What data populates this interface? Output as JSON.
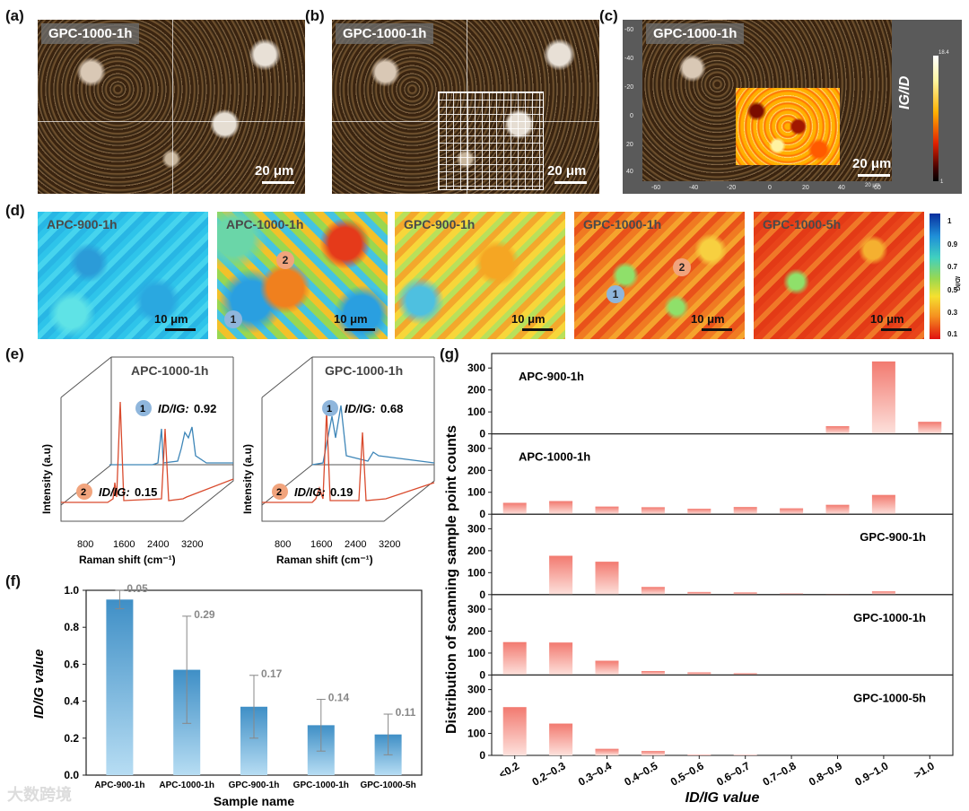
{
  "panel_labels": {
    "a": "(a)",
    "b": "(b)",
    "c": "(c)",
    "d": "(d)",
    "e": "(e)",
    "f": "(f)",
    "g": "(g)"
  },
  "micrographs": [
    {
      "tag": "GPC-1000-1h",
      "scale": "20 μm"
    },
    {
      "tag": "GPC-1000-1h",
      "scale": "20 μm"
    },
    {
      "tag": "GPC-1000-1h",
      "scale": "20 μm"
    }
  ],
  "panel_c": {
    "y_ticks": [
      "-60",
      "-40",
      "-20",
      "0",
      "20",
      "40"
    ],
    "x_ticks": [
      "-60",
      "-40",
      "-20",
      "0",
      "20",
      "40",
      "60"
    ],
    "colorbar_max": "18.4",
    "colorbar_min": "1",
    "colorbar_label": "IG/ID",
    "x_unit": "20 µm"
  },
  "maps": [
    {
      "tag": "APC-900-1h",
      "scale": "10 μm"
    },
    {
      "tag": "APC-1000-1h",
      "scale": "10 μm"
    },
    {
      "tag": "GPC-900-1h",
      "scale": "10 μm"
    },
    {
      "tag": "GPC-1000-1h",
      "scale": "10 μm"
    },
    {
      "tag": "GPC-1000-5h",
      "scale": "10 μm"
    }
  ],
  "map_points": {
    "p1": "1",
    "p2": "2"
  },
  "map_colorbar": {
    "ticks": [
      "1",
      "0.9",
      "0.7",
      "0.5",
      "0.3",
      "0.1"
    ],
    "label": "ID/IG"
  },
  "raman": [
    {
      "title": "APC-1000-1h",
      "p1_label": "ID/IG:",
      "p1_value": "0.92",
      "p2_label": "ID/IG:",
      "p2_value": "0.15"
    },
    {
      "title": "GPC-1000-1h",
      "p1_label": "ID/IG:",
      "p1_value": "0.68",
      "p2_label": "ID/IG:",
      "p2_value": "0.19"
    }
  ],
  "raman_axes": {
    "ylabel": "Intensity (a.u)",
    "xlabel": "Raman shift (cm⁻¹)",
    "xticks": [
      "800",
      "1600",
      "2400",
      "3200"
    ]
  },
  "watermark": "大数跨境",
  "chart_data": [
    {
      "type": "bar",
      "panel": "f",
      "categories": [
        "APC-900-1h",
        "APC-1000-1h",
        "GPC-900-1h",
        "GPC-1000-1h",
        "GPC-1000-5h"
      ],
      "values": [
        0.95,
        0.57,
        0.37,
        0.27,
        0.22
      ],
      "errors": [
        0.05,
        0.29,
        0.17,
        0.14,
        0.11
      ],
      "error_labels": [
        "0.05",
        "0.29",
        "0.17",
        "0.14",
        "0.11"
      ],
      "xlabel": "Sample name",
      "ylabel": "ID/IG value",
      "ylim": [
        0,
        1.0
      ],
      "yticks": [
        "0.0",
        "0.2",
        "0.4",
        "0.6",
        "0.8",
        "1.0"
      ],
      "color": "#4f9ccc"
    },
    {
      "type": "bar",
      "panel": "g",
      "categories": [
        "<0.2",
        "0.2~0.3",
        "0.3~0.4",
        "0.4~0.5",
        "0.5~0.6",
        "0.6~0.7",
        "0.7~0.8",
        "0.8~0.9",
        "0.9~1.0",
        ">1.0"
      ],
      "series": [
        {
          "name": "APC-900-1h",
          "values": [
            0,
            0,
            0,
            0,
            0,
            0,
            0,
            35,
            330,
            55
          ]
        },
        {
          "name": "APC-1000-1h",
          "values": [
            52,
            60,
            35,
            32,
            25,
            33,
            27,
            43,
            88,
            0
          ]
        },
        {
          "name": "GPC-900-1h",
          "values": [
            0,
            177,
            150,
            35,
            12,
            10,
            5,
            3,
            15,
            0
          ]
        },
        {
          "name": "GPC-1000-1h",
          "values": [
            150,
            148,
            65,
            18,
            12,
            8,
            0,
            0,
            0,
            0
          ]
        },
        {
          "name": "GPC-1000-5h",
          "values": [
            220,
            145,
            30,
            20,
            3,
            2,
            0,
            0,
            0,
            0
          ]
        }
      ],
      "xlabel": "ID/IG value",
      "ylabel": "Distribution of scanning sample point counts",
      "ylim": [
        0,
        350
      ],
      "yticks": [
        "0",
        "100",
        "200",
        "300"
      ],
      "color": "#f08c84"
    }
  ]
}
